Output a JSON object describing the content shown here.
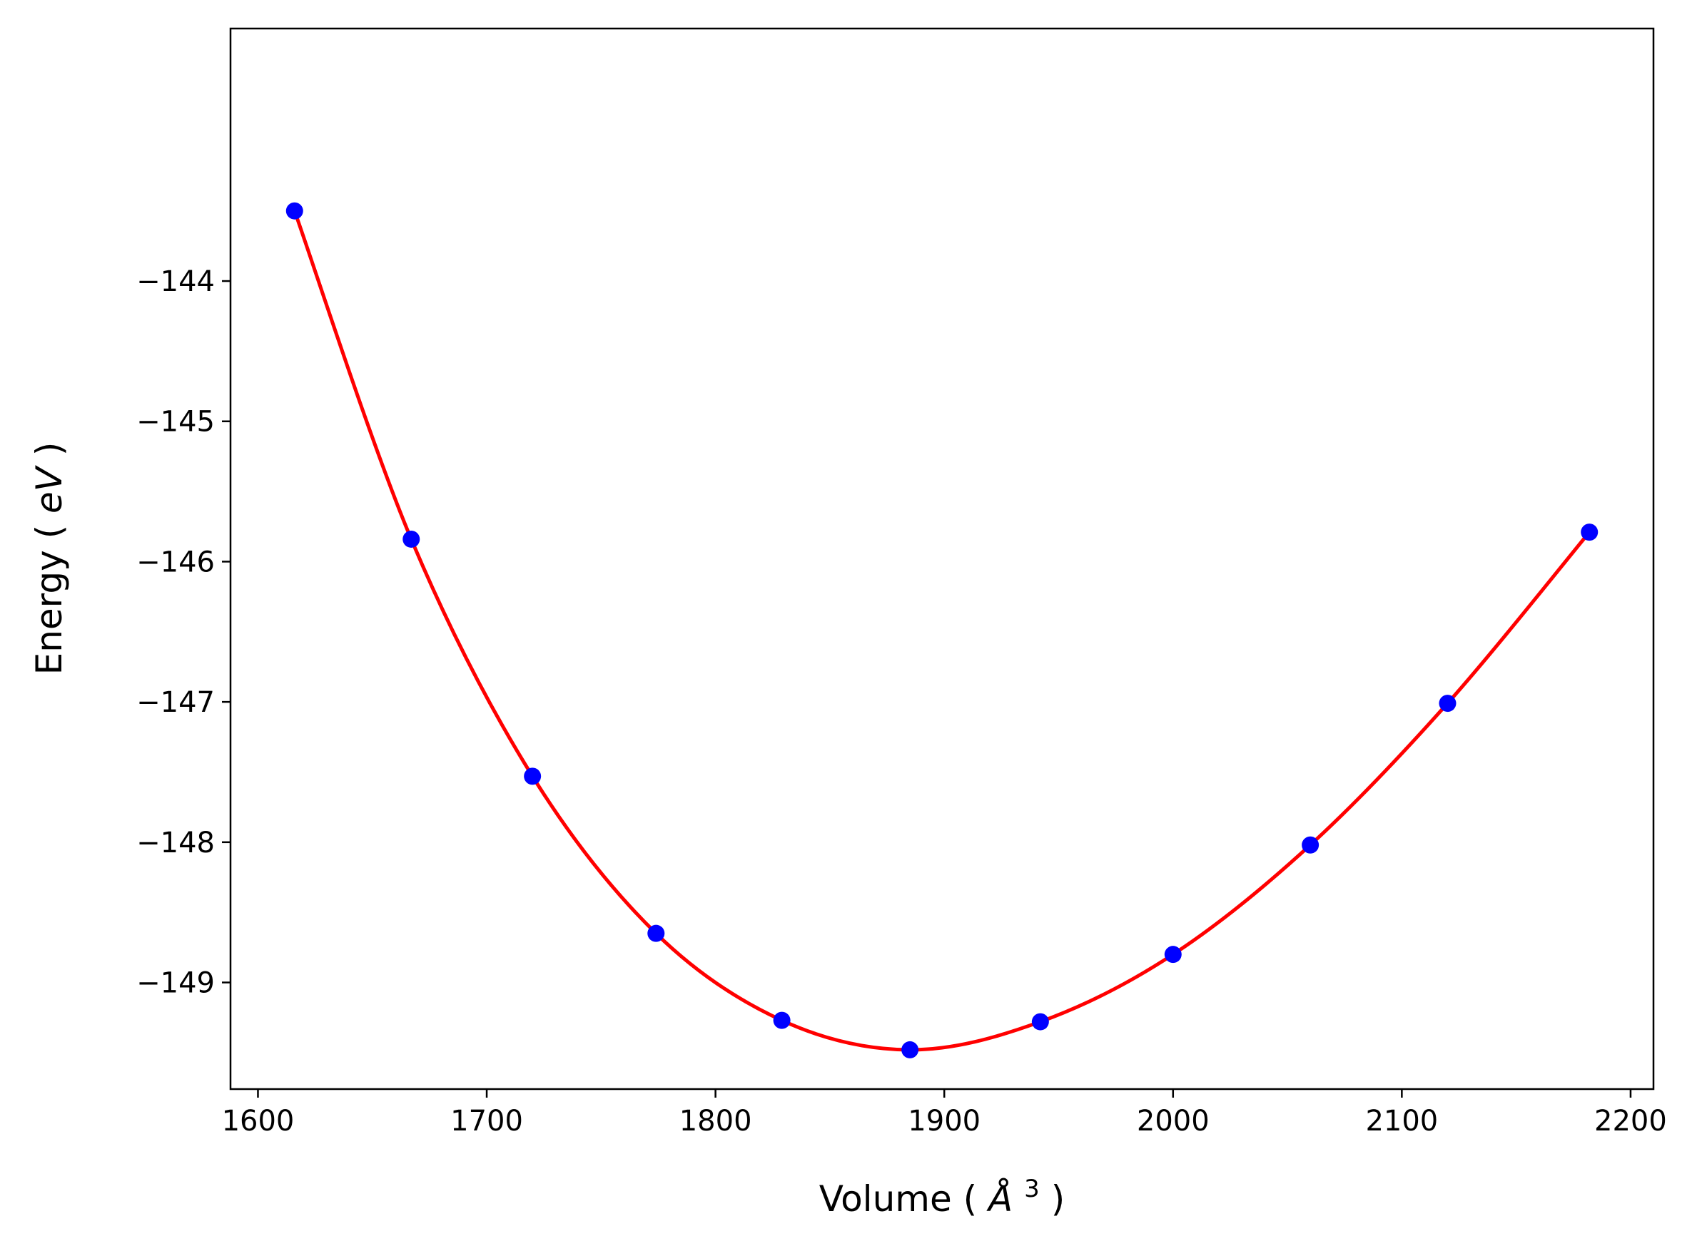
{
  "chart_data": {
    "type": "scatter",
    "title": "",
    "xlabel_parts": [
      "Volume (",
      "Å",
      "3",
      ")"
    ],
    "ylabel_parts": [
      "Energy (",
      "eV",
      ")"
    ],
    "xlim": [
      1588,
      2210
    ],
    "ylim": [
      -149.76,
      -142.2
    ],
    "xticks": [
      1600,
      1700,
      1800,
      1900,
      2000,
      2100,
      2200
    ],
    "xtick_labels": [
      "1600",
      "1700",
      "1800",
      "1900",
      "2000",
      "2100",
      "2200"
    ],
    "yticks": [
      -144,
      -145,
      -146,
      -147,
      -148,
      -149
    ],
    "ytick_labels": [
      "−144",
      "−145",
      "−146",
      "−147",
      "−148",
      "−149"
    ],
    "grid": false,
    "points": {
      "color": "#0000ff",
      "x": [
        1616,
        1667,
        1720,
        1774,
        1829,
        1885,
        1942,
        2000,
        2060,
        2120,
        2182
      ],
      "y": [
        -143.5,
        -145.84,
        -147.53,
        -148.65,
        -149.27,
        -149.48,
        -149.28,
        -148.8,
        -148.02,
        -147.01,
        -145.79
      ]
    },
    "fit_curve": {
      "color": "#ff0000"
    }
  }
}
